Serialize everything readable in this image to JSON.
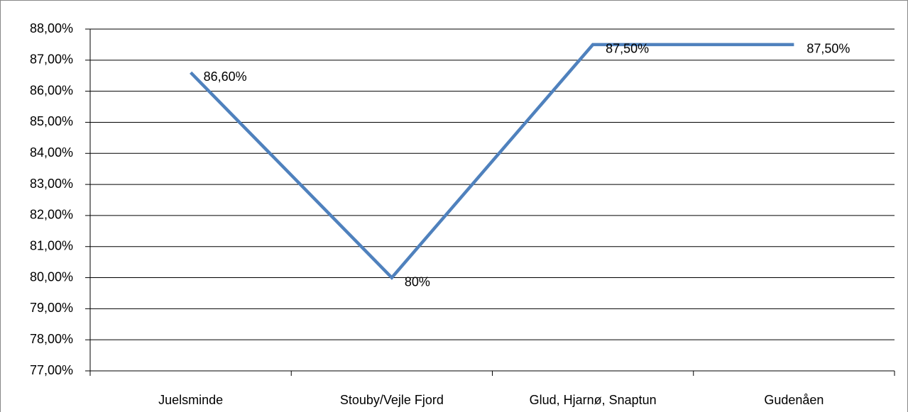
{
  "chart_data": {
    "type": "line",
    "categories": [
      "Juelsminde",
      "Stouby/Vejle Fjord",
      "Glud, Hjarnø, Snaptun",
      "Gudenåen"
    ],
    "values": [
      86.6,
      80,
      87.5,
      87.5
    ],
    "value_labels": [
      "86,60%",
      "80%",
      "87,50%",
      "87,50%"
    ],
    "color": "#4f81bd",
    "ylim": [
      77,
      88
    ],
    "yticks": [
      {
        "value": 77,
        "label": "77,00%"
      },
      {
        "value": 78,
        "label": "78,00%"
      },
      {
        "value": 79,
        "label": "79,00%"
      },
      {
        "value": 80,
        "label": "80,00%"
      },
      {
        "value": 81,
        "label": "81,00%"
      },
      {
        "value": 82,
        "label": "82,00%"
      },
      {
        "value": 83,
        "label": "83,00%"
      },
      {
        "value": 84,
        "label": "84,00%"
      },
      {
        "value": 85,
        "label": "85,00%"
      },
      {
        "value": 86,
        "label": "86,00%"
      },
      {
        "value": 87,
        "label": "87,00%"
      },
      {
        "value": 88,
        "label": "88,00%"
      }
    ],
    "grid": true
  }
}
